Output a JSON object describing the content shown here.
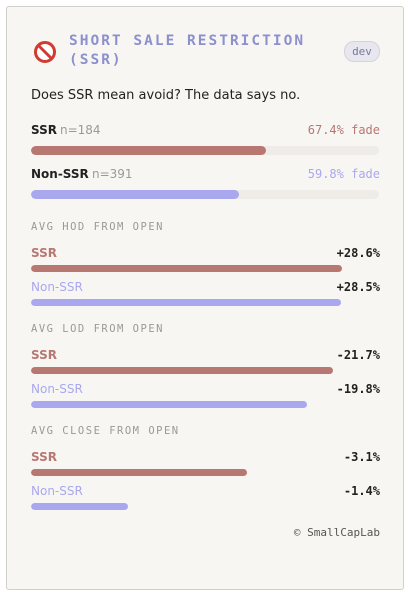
{
  "header": {
    "title": "SHORT SALE RESTRICTION (SSR)",
    "badge": "dev"
  },
  "question": "Does SSR mean avoid? The data says no.",
  "fade": {
    "xlim": [
      0,
      100
    ],
    "rows": [
      {
        "name": "SSR",
        "n_label": "n=184",
        "value": 67.4,
        "value_label": "67.4% fade",
        "color": "#b87872"
      },
      {
        "name": "Non-SSR",
        "n_label": "n=391",
        "value": 59.8,
        "value_label": "59.8% fade",
        "color": "#a9a8ee"
      }
    ]
  },
  "sections": [
    {
      "title": "AVG HOD FROM OPEN",
      "xlim": [
        0,
        32
      ],
      "rows": [
        {
          "name": "SSR",
          "value": 28.6,
          "value_label": "+28.6%",
          "color": "#b87872"
        },
        {
          "name": "Non-SSR",
          "value": 28.5,
          "value_label": "+28.5%",
          "color": "#a9a8ee"
        }
      ]
    },
    {
      "title": "AVG LOD FROM OPEN",
      "xlim": [
        0,
        -25
      ],
      "rows": [
        {
          "name": "SSR",
          "value": -21.7,
          "value_label": "-21.7%",
          "color": "#b87872"
        },
        {
          "name": "Non-SSR",
          "value": -19.8,
          "value_label": "-19.8%",
          "color": "#a9a8ee"
        }
      ]
    },
    {
      "title": "AVG CLOSE FROM OPEN",
      "xlim": [
        0,
        -5
      ],
      "rows": [
        {
          "name": "SSR",
          "value": -3.1,
          "value_label": "-3.1%",
          "color": "#b87872"
        },
        {
          "name": "Non-SSR",
          "value": -1.4,
          "value_label": "-1.4%",
          "color": "#a9a8ee"
        }
      ]
    }
  ],
  "footer": "© SmallCapLab"
}
